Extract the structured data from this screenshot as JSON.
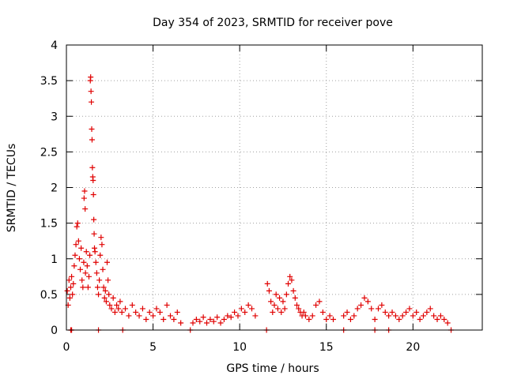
{
  "chart_data": {
    "type": "scatter",
    "title": "Day 354 of 2023, SRMTID for receiver pove",
    "xlabel": "GPS time / hours",
    "ylabel": "SRMTID / TECUs",
    "xlim": [
      0,
      24
    ],
    "ylim": [
      0,
      4
    ],
    "xticks": [
      0,
      5,
      10,
      15,
      20
    ],
    "xtick_labels": [
      "0",
      "5",
      "10",
      "15",
      "20"
    ],
    "yticks": [
      0,
      0.5,
      1,
      1.5,
      2,
      2.5,
      3,
      3.5,
      4
    ],
    "ytick_labels": [
      "0",
      "0.5",
      "1",
      "1.5",
      "2",
      "2.5",
      "3",
      "3.5",
      "4"
    ],
    "grid": true,
    "marker": "+",
    "color": "#e00000",
    "series": [
      {
        "name": "SRMTID",
        "points": [
          [
            0.05,
            0.55
          ],
          [
            0.1,
            0.35
          ],
          [
            0.15,
            0.7
          ],
          [
            0.2,
            0.45
          ],
          [
            0.25,
            0.6
          ],
          [
            0.3,
            0.75
          ],
          [
            0.35,
            0.5
          ],
          [
            0.4,
            0.65
          ],
          [
            0.45,
            0.9
          ],
          [
            0.5,
            1.05
          ],
          [
            0.55,
            1.2
          ],
          [
            0.6,
            1.45
          ],
          [
            0.65,
            1.5
          ],
          [
            0.7,
            1.25
          ],
          [
            0.75,
            1.0
          ],
          [
            0.8,
            0.85
          ],
          [
            0.85,
            1.15
          ],
          [
            0.9,
            0.7
          ],
          [
            0.95,
            0.6
          ],
          [
            1.0,
            0.95
          ],
          [
            1.02,
            1.85
          ],
          [
            1.05,
            1.95
          ],
          [
            1.08,
            1.7
          ],
          [
            1.1,
            0.8
          ],
          [
            1.15,
            1.1
          ],
          [
            1.2,
            0.9
          ],
          [
            1.25,
            0.6
          ],
          [
            1.3,
            0.75
          ],
          [
            1.35,
            1.05
          ],
          [
            1.38,
            3.5
          ],
          [
            1.4,
            3.55
          ],
          [
            1.42,
            3.35
          ],
          [
            1.44,
            3.2
          ],
          [
            1.46,
            2.82
          ],
          [
            1.48,
            2.67
          ],
          [
            1.5,
            2.28
          ],
          [
            1.52,
            2.15
          ],
          [
            1.54,
            2.1
          ],
          [
            1.56,
            1.9
          ],
          [
            1.58,
            1.55
          ],
          [
            1.6,
            1.35
          ],
          [
            1.62,
            1.15
          ],
          [
            1.65,
            1.1
          ],
          [
            1.7,
            0.95
          ],
          [
            1.75,
            0.8
          ],
          [
            1.8,
            0.6
          ],
          [
            1.85,
            0.5
          ],
          [
            1.9,
            0.7
          ],
          [
            1.95,
            1.05
          ],
          [
            2.0,
            1.3
          ],
          [
            2.05,
            1.2
          ],
          [
            2.1,
            0.85
          ],
          [
            2.15,
            0.6
          ],
          [
            2.2,
            0.45
          ],
          [
            2.25,
            0.55
          ],
          [
            2.3,
            0.4
          ],
          [
            2.35,
            0.95
          ],
          [
            2.4,
            0.7
          ],
          [
            2.45,
            0.5
          ],
          [
            2.5,
            0.35
          ],
          [
            2.6,
            0.3
          ],
          [
            2.7,
            0.45
          ],
          [
            2.8,
            0.25
          ],
          [
            2.9,
            0.35
          ],
          [
            3.0,
            0.3
          ],
          [
            3.1,
            0.4
          ],
          [
            3.2,
            0.25
          ],
          [
            3.4,
            0.3
          ],
          [
            3.6,
            0.2
          ],
          [
            3.8,
            0.35
          ],
          [
            4.0,
            0.25
          ],
          [
            4.2,
            0.2
          ],
          [
            4.4,
            0.3
          ],
          [
            4.6,
            0.15
          ],
          [
            4.8,
            0.25
          ],
          [
            5.0,
            0.2
          ],
          [
            5.2,
            0.3
          ],
          [
            5.4,
            0.25
          ],
          [
            5.6,
            0.15
          ],
          [
            5.8,
            0.35
          ],
          [
            6.0,
            0.2
          ],
          [
            6.2,
            0.15
          ],
          [
            6.4,
            0.25
          ],
          [
            6.6,
            0.1
          ],
          [
            7.3,
            0.1
          ],
          [
            7.5,
            0.15
          ],
          [
            7.7,
            0.12
          ],
          [
            7.9,
            0.18
          ],
          [
            8.1,
            0.1
          ],
          [
            8.3,
            0.15
          ],
          [
            8.5,
            0.12
          ],
          [
            8.7,
            0.18
          ],
          [
            8.9,
            0.1
          ],
          [
            9.1,
            0.15
          ],
          [
            9.3,
            0.2
          ],
          [
            9.5,
            0.18
          ],
          [
            9.7,
            0.25
          ],
          [
            9.9,
            0.2
          ],
          [
            10.1,
            0.3
          ],
          [
            10.3,
            0.25
          ],
          [
            10.5,
            0.35
          ],
          [
            10.7,
            0.3
          ],
          [
            10.9,
            0.2
          ],
          [
            11.6,
            0.65
          ],
          [
            11.7,
            0.55
          ],
          [
            11.8,
            0.4
          ],
          [
            11.9,
            0.25
          ],
          [
            12.0,
            0.35
          ],
          [
            12.1,
            0.5
          ],
          [
            12.2,
            0.3
          ],
          [
            12.3,
            0.45
          ],
          [
            12.4,
            0.25
          ],
          [
            12.5,
            0.4
          ],
          [
            12.6,
            0.3
          ],
          [
            12.7,
            0.5
          ],
          [
            12.8,
            0.65
          ],
          [
            12.9,
            0.75
          ],
          [
            13.0,
            0.7
          ],
          [
            13.1,
            0.55
          ],
          [
            13.2,
            0.45
          ],
          [
            13.3,
            0.35
          ],
          [
            13.4,
            0.3
          ],
          [
            13.5,
            0.25
          ],
          [
            13.6,
            0.2
          ],
          [
            13.7,
            0.25
          ],
          [
            13.8,
            0.2
          ],
          [
            14.0,
            0.15
          ],
          [
            14.2,
            0.2
          ],
          [
            14.4,
            0.35
          ],
          [
            14.6,
            0.4
          ],
          [
            14.8,
            0.25
          ],
          [
            15.0,
            0.15
          ],
          [
            15.2,
            0.2
          ],
          [
            15.4,
            0.15
          ],
          [
            16.0,
            0.2
          ],
          [
            16.2,
            0.25
          ],
          [
            16.4,
            0.15
          ],
          [
            16.6,
            0.2
          ],
          [
            16.8,
            0.3
          ],
          [
            17.0,
            0.35
          ],
          [
            17.2,
            0.45
          ],
          [
            17.4,
            0.4
          ],
          [
            17.6,
            0.3
          ],
          [
            17.8,
            0.15
          ],
          [
            18.0,
            0.3
          ],
          [
            18.2,
            0.35
          ],
          [
            18.4,
            0.25
          ],
          [
            18.6,
            0.2
          ],
          [
            18.8,
            0.25
          ],
          [
            19.0,
            0.2
          ],
          [
            19.2,
            0.15
          ],
          [
            19.4,
            0.2
          ],
          [
            19.6,
            0.25
          ],
          [
            19.8,
            0.3
          ],
          [
            20.0,
            0.2
          ],
          [
            20.2,
            0.25
          ],
          [
            20.4,
            0.15
          ],
          [
            20.6,
            0.2
          ],
          [
            20.8,
            0.25
          ],
          [
            21.0,
            0.3
          ],
          [
            21.2,
            0.2
          ],
          [
            21.4,
            0.15
          ],
          [
            21.6,
            0.2
          ],
          [
            21.8,
            0.15
          ],
          [
            22.0,
            0.1
          ],
          [
            0.25,
            0
          ],
          [
            0.3,
            0
          ],
          [
            1.85,
            0
          ],
          [
            3.25,
            0
          ],
          [
            7.15,
            0
          ],
          [
            11.55,
            0
          ],
          [
            16.0,
            0
          ],
          [
            17.8,
            0
          ],
          [
            18.6,
            0
          ],
          [
            22.2,
            0
          ]
        ]
      }
    ]
  }
}
